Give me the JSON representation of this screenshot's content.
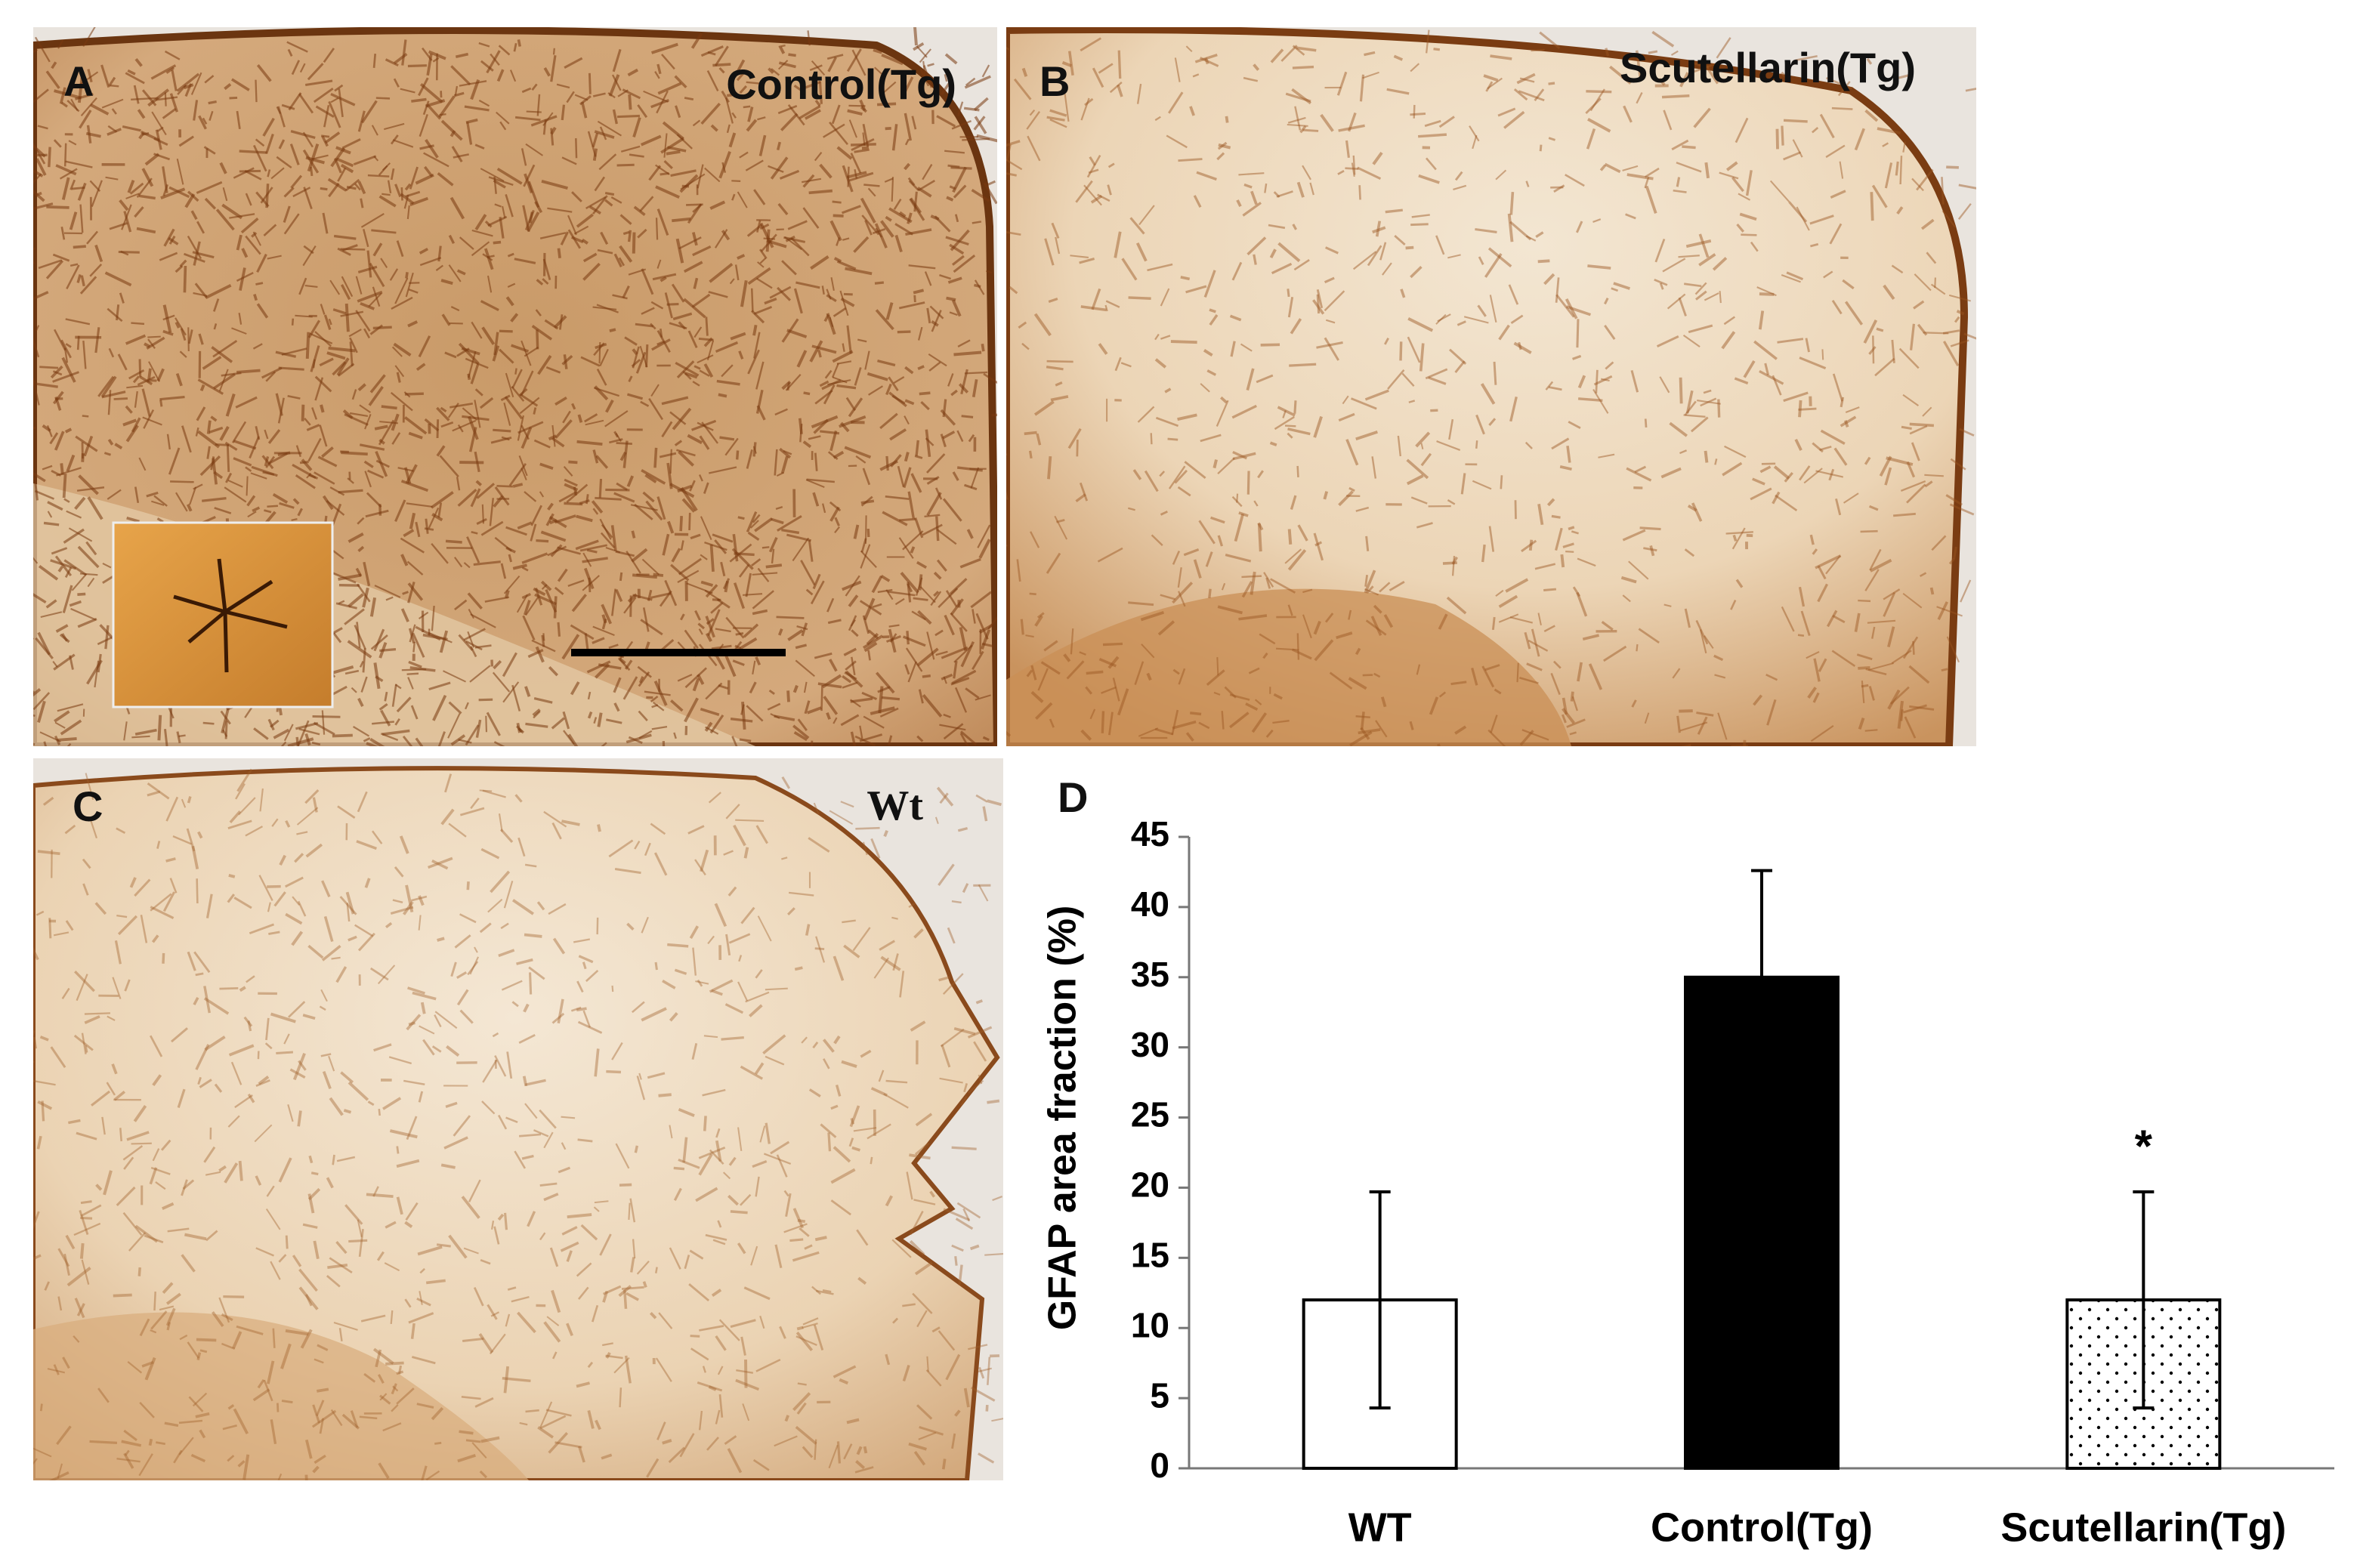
{
  "panels": [
    {
      "letter": "A",
      "label": "Control(Tg)"
    },
    {
      "letter": "B",
      "label": "Scutellarin(Tg)"
    },
    {
      "letter": "C",
      "label": "Wt"
    }
  ],
  "chart_data": {
    "type": "bar",
    "panel_letter": "D",
    "ylabel": "GFAP area fraction (%)",
    "categories": [
      "WT",
      "Control(Tg)",
      "Scutellarin(Tg)"
    ],
    "values": [
      12,
      35,
      12
    ],
    "errors": [
      7.7,
      7.6,
      7.7
    ],
    "colors": [
      "#ffffff",
      "#000000",
      "#ffffff"
    ],
    "hatches": [
      "none",
      "none",
      "dots"
    ],
    "annotations": [
      {
        "text": "*",
        "bar": 2
      }
    ],
    "ylim": [
      0,
      45
    ],
    "yticks": [
      0,
      5,
      10,
      15,
      20,
      25,
      30,
      35,
      40,
      45
    ]
  }
}
